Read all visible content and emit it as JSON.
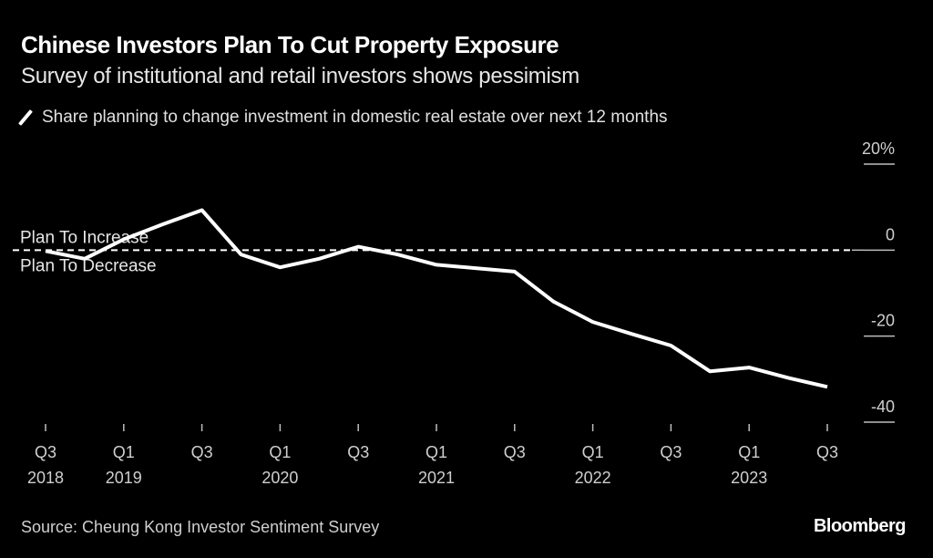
{
  "header": {
    "title": "Chinese Investors Plan To Cut Property Exposure",
    "subtitle": "Survey of institutional and retail investors shows pessimism"
  },
  "legend": {
    "label": "Share planning to change investment in domestic real estate over next 12 months",
    "color": "#ffffff"
  },
  "annotations": {
    "above": "Plan To Increase",
    "below": "Plan To Decrease"
  },
  "footer": {
    "source": "Source: Cheung Kong Investor Sentiment Survey",
    "brand": "Bloomberg"
  },
  "chart_data": {
    "type": "line",
    "title": "Chinese Investors Plan To Cut Property Exposure",
    "subtitle": "Survey of institutional and retail investors shows pessimism",
    "xlabel": "",
    "ylabel": "",
    "ylim": [
      -40,
      20
    ],
    "yticks": [
      20,
      0,
      -20,
      -40
    ],
    "ytick_labels": [
      "20%",
      "0",
      "-20",
      "-40"
    ],
    "y_axis_side": "right",
    "grid": false,
    "reference_line": {
      "y": 0,
      "style": "dashed"
    },
    "x": [
      "Q3 2018",
      "Q4 2018",
      "Q1 2019",
      "Q2 2019",
      "Q3 2019",
      "Q4 2019",
      "Q1 2020",
      "Q2 2020",
      "Q3 2020",
      "Q4 2020",
      "Q1 2021",
      "Q2 2021",
      "Q3 2021",
      "Q4 2021",
      "Q1 2022",
      "Q2 2022",
      "Q3 2022",
      "Q4 2022",
      "Q1 2023",
      "Q2 2023",
      "Q3 2023"
    ],
    "xticks": [
      {
        "index": 0,
        "line1": "Q3",
        "line2": "2018"
      },
      {
        "index": 2,
        "line1": "Q1",
        "line2": "2019"
      },
      {
        "index": 4,
        "line1": "Q3",
        "line2": ""
      },
      {
        "index": 6,
        "line1": "Q1",
        "line2": "2020"
      },
      {
        "index": 8,
        "line1": "Q3",
        "line2": ""
      },
      {
        "index": 10,
        "line1": "Q1",
        "line2": "2021"
      },
      {
        "index": 12,
        "line1": "Q3",
        "line2": ""
      },
      {
        "index": 14,
        "line1": "Q1",
        "line2": "2022"
      },
      {
        "index": 16,
        "line1": "Q3",
        "line2": ""
      },
      {
        "index": 18,
        "line1": "Q1",
        "line2": "2023"
      },
      {
        "index": 20,
        "line1": "Q3",
        "line2": ""
      }
    ],
    "series": [
      {
        "name": "Share planning to change investment in domestic real estate over next 12 months",
        "color": "#ffffff",
        "values": [
          -0.2,
          -2.0,
          2.5,
          6.0,
          9.3,
          -1.0,
          -4.0,
          -2.0,
          0.8,
          -1.0,
          -3.4,
          -4.2,
          -5.0,
          -12.0,
          -16.7,
          -19.5,
          -22.2,
          -28.2,
          -27.3,
          -29.7,
          -31.8
        ]
      }
    ],
    "legend_position": "top-left"
  }
}
